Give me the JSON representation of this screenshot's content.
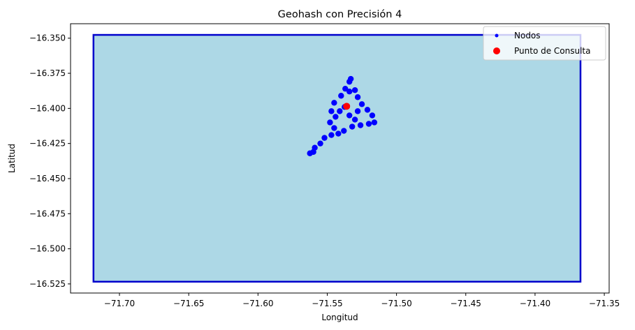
{
  "chart_data": {
    "type": "scatter",
    "title": "Geohash con Precisión 4",
    "xlabel": "Longitud",
    "ylabel": "Latitud",
    "xlim": [
      -71.7353,
      -71.3465
    ],
    "ylim": [
      -16.5315,
      -16.3397
    ],
    "xticks": [
      -71.7,
      -71.65,
      -71.6,
      -71.55,
      -71.5,
      -71.45,
      -71.4,
      -71.35
    ],
    "xtick_labels": [
      "−71.70",
      "−71.65",
      "−71.60",
      "−71.55",
      "−71.50",
      "−71.45",
      "−71.40",
      "−71.35"
    ],
    "yticks": [
      -16.35,
      -16.375,
      -16.4,
      -16.425,
      -16.45,
      -16.475,
      -16.5,
      -16.525
    ],
    "ytick_labels": [
      "−16.350",
      "−16.375",
      "−16.400",
      "−16.425",
      "−16.450",
      "−16.475",
      "−16.500",
      "−16.525"
    ],
    "grid": false,
    "legend_position": "top-right",
    "geohash_cell": {
      "lon_min": -71.71875,
      "lon_max": -71.3671875,
      "lat_min": -16.5234375,
      "lat_max": -16.34765625,
      "fill_color": "#add8e6",
      "edge_color": "#0000cc"
    },
    "series": [
      {
        "name": "Nodos",
        "color": "#0000ff",
        "points": [
          [
            -71.5375,
            -16.399
          ],
          [
            -71.533,
            -16.379
          ],
          [
            -71.534,
            -16.381
          ],
          [
            -71.537,
            -16.386
          ],
          [
            -71.534,
            -16.388
          ],
          [
            -71.53,
            -16.387
          ],
          [
            -71.54,
            -16.391
          ],
          [
            -71.545,
            -16.396
          ],
          [
            -71.547,
            -16.402
          ],
          [
            -71.544,
            -16.406
          ],
          [
            -71.548,
            -16.41
          ],
          [
            -71.545,
            -16.414
          ],
          [
            -71.547,
            -16.419
          ],
          [
            -71.552,
            -16.421
          ],
          [
            -71.555,
            -16.425
          ],
          [
            -71.559,
            -16.428
          ],
          [
            -71.5625,
            -16.432
          ],
          [
            -71.56,
            -16.431
          ],
          [
            -71.528,
            -16.392
          ],
          [
            -71.525,
            -16.397
          ],
          [
            -71.521,
            -16.401
          ],
          [
            -71.5175,
            -16.405
          ],
          [
            -71.516,
            -16.41
          ],
          [
            -71.52,
            -16.411
          ],
          [
            -71.526,
            -16.412
          ],
          [
            -71.532,
            -16.413
          ],
          [
            -71.538,
            -16.416
          ],
          [
            -71.542,
            -16.418
          ],
          [
            -71.53,
            -16.408
          ],
          [
            -71.534,
            -16.405
          ],
          [
            -71.541,
            -16.402
          ],
          [
            -71.528,
            -16.402
          ]
        ]
      },
      {
        "name": "Punto de Consulta",
        "color": "#ff0000",
        "points": [
          [
            -71.536,
            -16.3985
          ]
        ]
      }
    ]
  }
}
